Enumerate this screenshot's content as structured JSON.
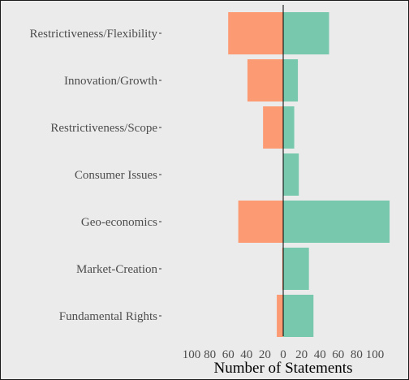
{
  "chart_data": {
    "type": "bar",
    "orientation": "horizontal-diverging",
    "categories": [
      "Restrictiveness/Flexibility",
      "Innovation/Growth",
      "Restrictiveness/Scope",
      "Consumer Issues",
      "Geo-economics",
      "Market-Creation",
      "Fundamental Rights"
    ],
    "series": [
      {
        "side": "left",
        "color": "#fc9a73",
        "values": [
          60,
          39,
          22,
          0,
          49,
          1,
          7
        ]
      },
      {
        "side": "right",
        "color": "#77c8ac",
        "values": [
          50,
          16,
          12,
          17,
          116,
          28,
          33
        ]
      }
    ],
    "xlabel": "Number of Statements",
    "xticks": [
      {
        "value": -100,
        "label": "100"
      },
      {
        "value": -80,
        "label": "80"
      },
      {
        "value": -60,
        "label": "60"
      },
      {
        "value": -40,
        "label": "40"
      },
      {
        "value": -20,
        "label": "20"
      },
      {
        "value": 0,
        "label": "0"
      },
      {
        "value": 20,
        "label": "20"
      },
      {
        "value": 40,
        "label": "40"
      },
      {
        "value": 60,
        "label": "60"
      },
      {
        "value": 80,
        "label": "80"
      },
      {
        "value": 100,
        "label": "100"
      }
    ],
    "xlim": [
      -100,
      116
    ],
    "grid": false,
    "legend": "none",
    "zero_line": true
  }
}
